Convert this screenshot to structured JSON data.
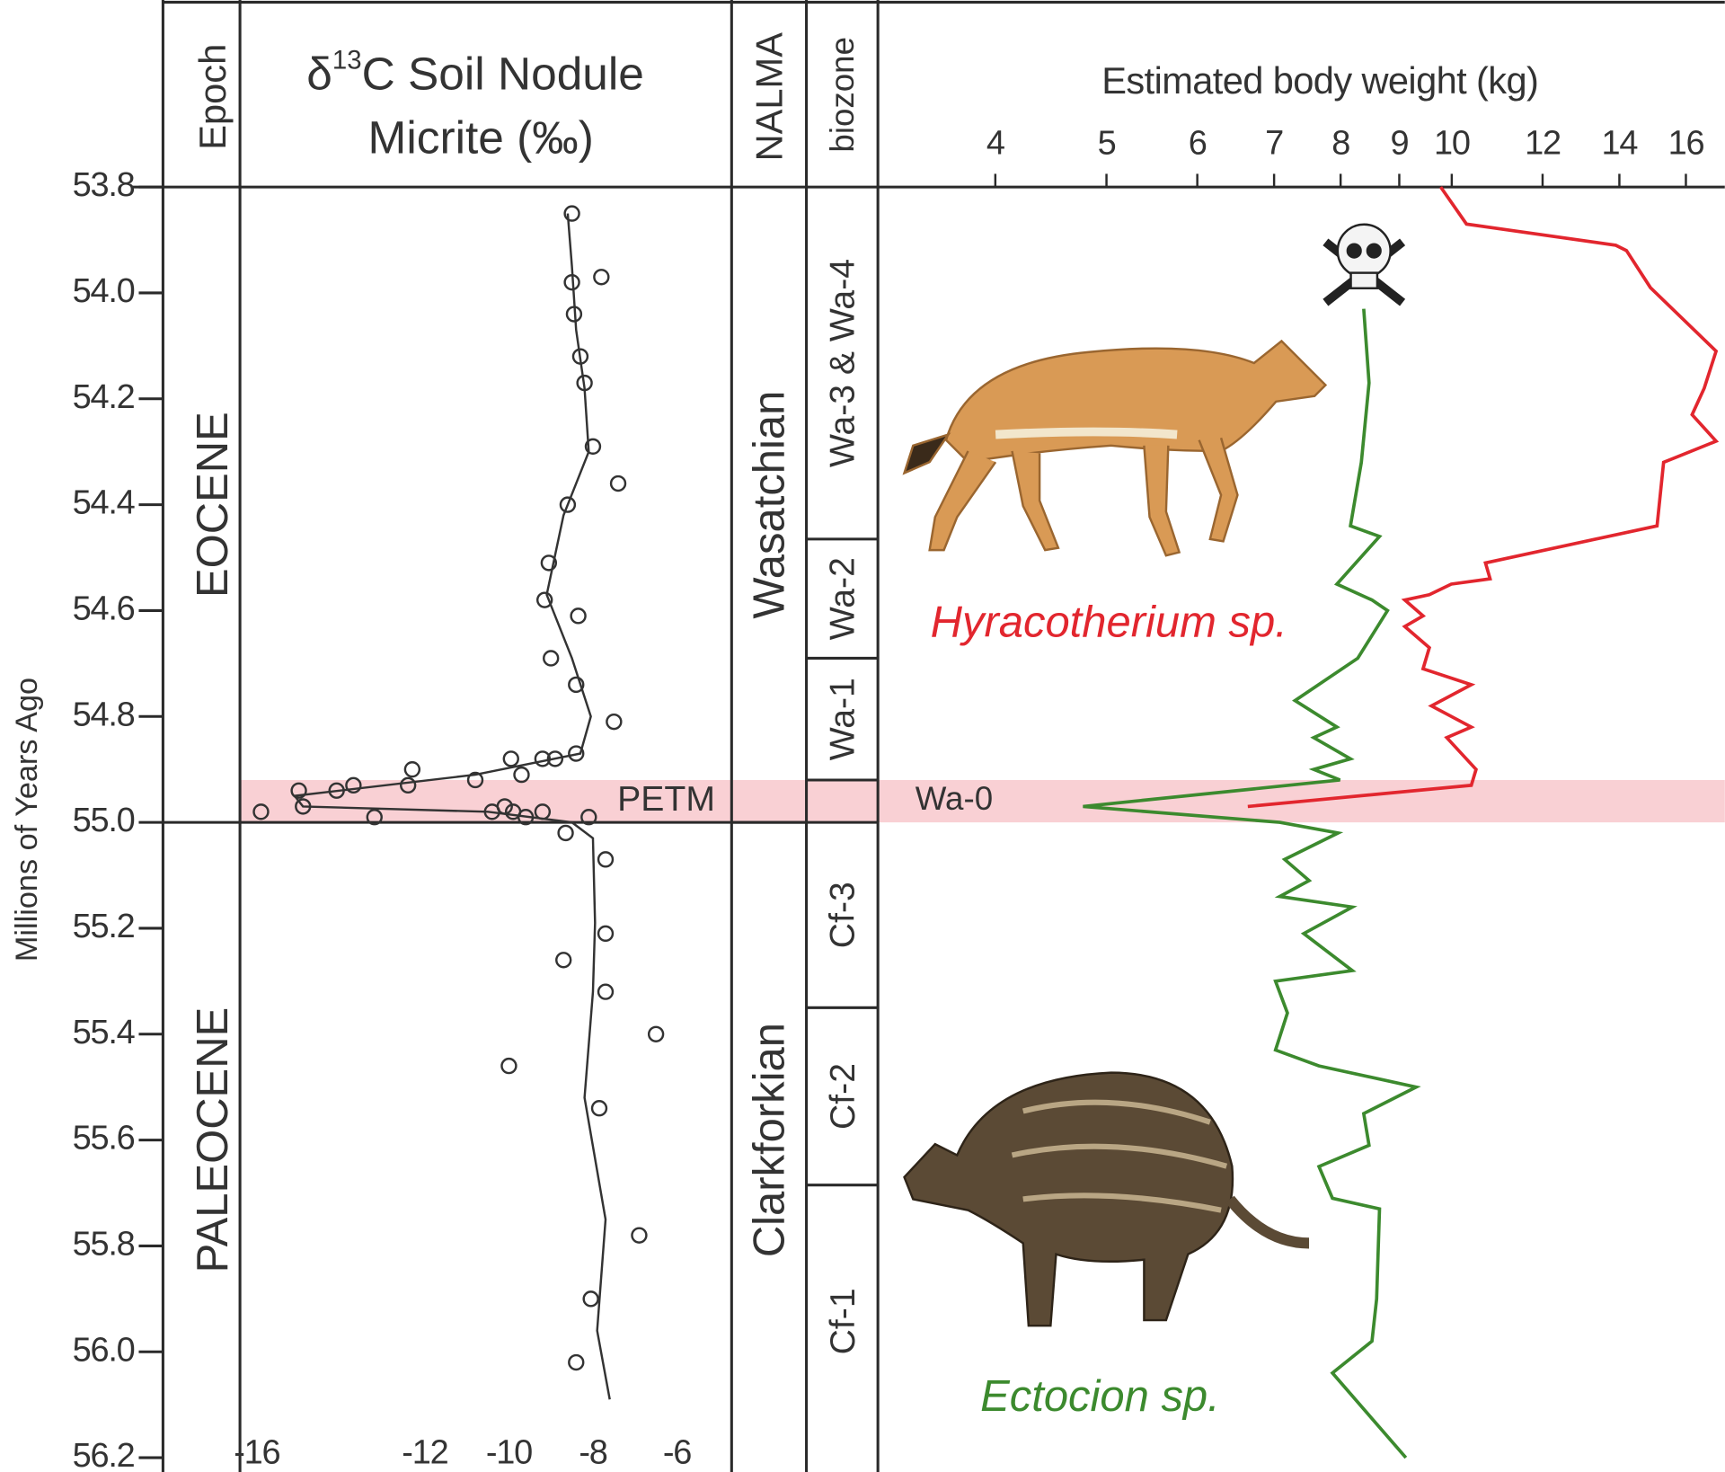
{
  "chart_data": [
    {
      "type": "scatter",
      "title_parts": {
        "delta": "δ",
        "superscript": "13",
        "line1": "C Soil Nodule",
        "line2": "Micrite (‰)"
      },
      "ylabel": "Millions of Years Ago",
      "color": "#333333",
      "xlim": [
        -16.4,
        -4.7
      ],
      "xticks": [
        -16,
        -12,
        -10,
        -8,
        -6
      ],
      "ylim": [
        53.8,
        56.2
      ],
      "yticks": [
        53.8,
        {
          "value": 54,
          "label": "54.0"
        },
        54.2,
        54.4,
        54.6,
        54.8,
        {
          "value": 55,
          "label": "55.0"
        },
        55.2,
        55.4,
        55.6,
        55.8,
        {
          "value": 56,
          "label": "56.0"
        },
        56.2
      ],
      "points": {
        "values": [
          -8.5,
          -7.8,
          -8.5,
          -8.45,
          -8.3,
          -8.2,
          -8.0,
          -7.4,
          -8.6,
          -9.05,
          -9.15,
          -8.35,
          -9.0,
          -8.4,
          -7.5,
          -8.4,
          -8.9,
          -9.2,
          -9.95,
          -9.7,
          -10.8,
          -12.3,
          -12.4,
          -13.7,
          -14.1,
          -15.0,
          -14.9,
          -15.9,
          -13.2,
          -10.4,
          -10.1,
          -9.9,
          -9.6,
          -9.2,
          -8.1,
          -8.65,
          -7.7,
          -7.7,
          -8.7,
          -7.7,
          -6.5,
          -10.0,
          -7.85,
          -6.9,
          -8.05,
          -8.4
        ],
        "ages": [
          53.85,
          53.97,
          53.98,
          54.04,
          54.12,
          54.17,
          54.29,
          54.36,
          54.4,
          54.51,
          54.58,
          54.61,
          54.69,
          54.74,
          54.81,
          54.87,
          54.88,
          54.88,
          54.88,
          54.91,
          54.92,
          54.9,
          54.93,
          54.93,
          54.94,
          54.94,
          54.97,
          54.98,
          54.99,
          54.98,
          54.97,
          54.98,
          54.99,
          54.98,
          54.99,
          55.02,
          55.07,
          55.21,
          55.26,
          55.32,
          55.4,
          55.46,
          55.54,
          55.78,
          55.9,
          56.02
        ]
      },
      "trend": {
        "values": [
          -8.6,
          -8.5,
          -8.4,
          -8.2,
          -8.1,
          -8.7,
          -9.1,
          -8.5,
          -8.05,
          -8.3,
          -10.8,
          -15.1,
          -14.9,
          -10.5,
          -8.5,
          -8.0,
          -7.95,
          -8.0,
          -8.2,
          -7.7,
          -7.9,
          -7.6
        ],
        "ages": [
          53.85,
          53.95,
          54.07,
          54.18,
          54.3,
          54.42,
          54.57,
          54.69,
          54.8,
          54.87,
          54.91,
          54.95,
          54.97,
          54.98,
          55.0,
          55.03,
          55.19,
          55.32,
          55.52,
          55.75,
          55.96,
          56.09
        ]
      }
    },
    {
      "type": "line",
      "title": "Estimated body weight (kg)",
      "xscale": "log",
      "xlim": [
        3.16,
        17.3
      ],
      "xticks": [
        4,
        5,
        6,
        7,
        8,
        9,
        10,
        12,
        14,
        16
      ],
      "ylim": [
        53.8,
        56.2
      ],
      "series": [
        {
          "name": "Hyracotherium sp.",
          "color": "#e2262e",
          "values": [
            9.78,
            10.3,
            13.9,
            14.2,
            14.9,
            17.0,
            16.6,
            16.2,
            17.0,
            15.3,
            15.1,
            10.7,
            10.8,
            9.99,
            9.56,
            9.1,
            9.44,
            9.1,
            9.56,
            9.44,
            10.4,
            9.6,
            10.4,
            9.9,
            10.5,
            10.4,
            6.64
          ],
          "ages": [
            53.8,
            53.87,
            53.91,
            53.92,
            53.99,
            54.11,
            54.18,
            54.23,
            54.28,
            54.32,
            54.44,
            54.51,
            54.54,
            54.55,
            54.57,
            54.58,
            54.61,
            54.63,
            54.67,
            54.71,
            54.74,
            54.78,
            54.82,
            54.84,
            54.9,
            54.93,
            54.97
          ]
        },
        {
          "name": "Ectocion sp.",
          "color": "#3c8a2e",
          "values": [
            8.38,
            8.47,
            8.34,
            8.16,
            8.65,
            7.94,
            8.52,
            8.79,
            8.28,
            7.3,
            7.94,
            7.58,
            8.16,
            7.58,
            7.99,
            4.77,
            7.08,
            7.96,
            7.15,
            7.51,
            7.08,
            8.19,
            7.43,
            8.19,
            7.02,
            7.19,
            7.02,
            7.66,
            9.31,
            8.38,
            8.47,
            7.66,
            7.87,
            8.65,
            8.6,
            8.52,
            7.87,
            9.12
          ],
          "ages": [
            54.03,
            54.17,
            54.32,
            54.44,
            54.46,
            54.55,
            54.58,
            54.6,
            54.69,
            54.77,
            54.82,
            54.84,
            54.88,
            54.9,
            54.92,
            54.97,
            55.0,
            55.02,
            55.07,
            55.11,
            55.14,
            55.16,
            55.21,
            55.28,
            55.3,
            55.36,
            55.43,
            55.46,
            55.5,
            55.55,
            55.61,
            55.65,
            55.71,
            55.73,
            55.9,
            55.98,
            56.04,
            56.2
          ]
        }
      ]
    }
  ],
  "stratigraphy": {
    "epoch": {
      "header": "Epoch",
      "units": [
        {
          "label": "EOCENE",
          "top": 53.8,
          "base": 55.0
        },
        {
          "label": "PALEOCENE",
          "top": 55.0,
          "base": 56.2
        }
      ]
    },
    "nalma": {
      "header": "NALMA",
      "units": [
        {
          "label": "Wasatchian",
          "top": 53.8,
          "base": 55.0
        },
        {
          "label": "Clarkforkian",
          "top": 55.0,
          "base": 56.2
        }
      ]
    },
    "biozone": {
      "header": "biozone",
      "units": [
        {
          "label": "Wa-3 & Wa-4",
          "top": 53.8,
          "base": 54.465
        },
        {
          "label": "Wa-2",
          "top": 54.465,
          "base": 54.69
        },
        {
          "label": "Wa-1",
          "top": 54.69,
          "base": 54.92
        },
        {
          "label": "Wa-0",
          "top": 54.92,
          "base": 55.0
        },
        {
          "label": "Cf-3",
          "top": 55.0,
          "base": 55.35
        },
        {
          "label": "Cf-2",
          "top": 55.35,
          "base": 55.685
        },
        {
          "label": "Cf-1",
          "top": 55.685,
          "base": 56.2
        }
      ]
    },
    "petm": {
      "label": "PETM",
      "top": 54.92,
      "base": 55.0
    }
  }
}
